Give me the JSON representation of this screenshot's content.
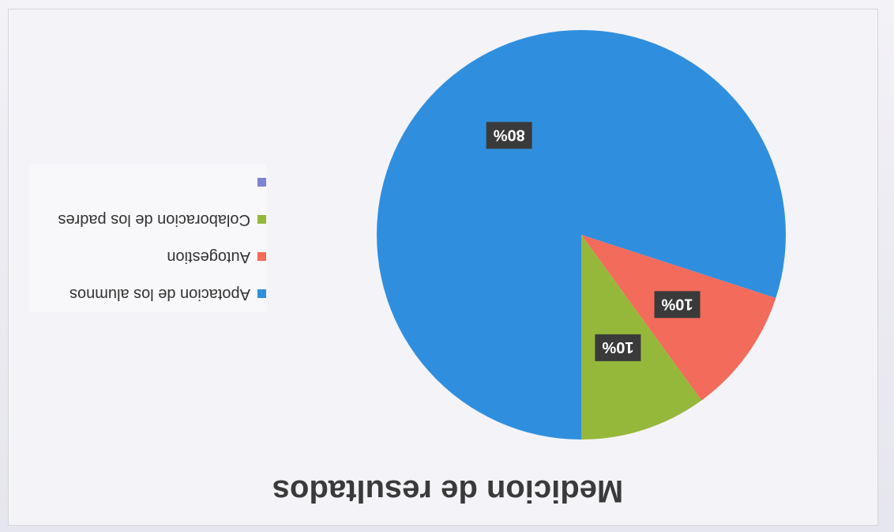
{
  "chart_data": {
    "type": "pie",
    "title": "Medicion de resultados",
    "categories": [
      "Apotacion de los alumnos",
      "Autogestion",
      "Colaboracion de los padres",
      ""
    ],
    "values": [
      80,
      10,
      10,
      0
    ],
    "data_labels": [
      "80%",
      "10%",
      "10%",
      ""
    ],
    "colors": [
      "#2f8fde",
      "#f26b5b",
      "#95b83b",
      "#7f84d0"
    ],
    "legend_placement": "right"
  }
}
